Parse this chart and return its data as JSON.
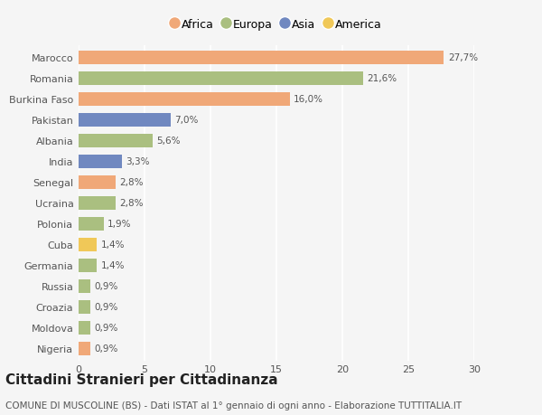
{
  "countries": [
    "Marocco",
    "Romania",
    "Burkina Faso",
    "Pakistan",
    "Albania",
    "India",
    "Senegal",
    "Ucraina",
    "Polonia",
    "Cuba",
    "Germania",
    "Russia",
    "Croazia",
    "Moldova",
    "Nigeria"
  ],
  "values": [
    27.7,
    21.6,
    16.0,
    7.0,
    5.6,
    3.3,
    2.8,
    2.8,
    1.9,
    1.4,
    1.4,
    0.9,
    0.9,
    0.9,
    0.9
  ],
  "labels": [
    "27,7%",
    "21,6%",
    "16,0%",
    "7,0%",
    "5,6%",
    "3,3%",
    "2,8%",
    "2,8%",
    "1,9%",
    "1,4%",
    "1,4%",
    "0,9%",
    "0,9%",
    "0,9%",
    "0,9%"
  ],
  "continents": [
    "Africa",
    "Europa",
    "Africa",
    "Asia",
    "Europa",
    "Asia",
    "Africa",
    "Europa",
    "Europa",
    "America",
    "Europa",
    "Europa",
    "Europa",
    "Europa",
    "Africa"
  ],
  "continent_colors": {
    "Africa": "#F0A878",
    "Europa": "#AABF80",
    "Asia": "#7088C0",
    "America": "#F0C858"
  },
  "legend_items": [
    "Africa",
    "Europa",
    "Asia",
    "America"
  ],
  "title": "Cittadini Stranieri per Cittadinanza",
  "subtitle": "COMUNE DI MUSCOLINE (BS) - Dati ISTAT al 1° gennaio di ogni anno - Elaborazione TUTTITALIA.IT",
  "xlim": [
    0,
    30
  ],
  "xticks": [
    0,
    5,
    10,
    15,
    20,
    25,
    30
  ],
  "background_color": "#f5f5f5",
  "bar_height": 0.65,
  "title_fontsize": 11,
  "subtitle_fontsize": 7.5,
  "label_fontsize": 7.5,
  "ytick_fontsize": 8,
  "xtick_fontsize": 8,
  "legend_fontsize": 9
}
